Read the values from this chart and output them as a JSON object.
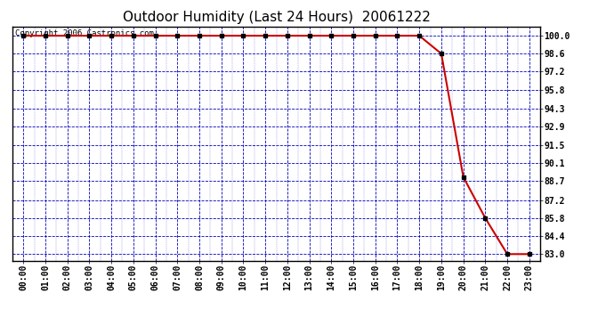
{
  "title": "Outdoor Humidity (Last 24 Hours)  20061222",
  "copyright_text": "Copyright 2006 Castronics.com",
  "background_color": "#ffffff",
  "plot_bg_color": "#ffffff",
  "grid_color": "#0000bb",
  "line_color": "#cc0000",
  "marker_color": "#000000",
  "x_labels": [
    "00:00",
    "01:00",
    "02:00",
    "03:00",
    "04:00",
    "05:00",
    "06:00",
    "07:00",
    "08:00",
    "09:00",
    "10:00",
    "11:00",
    "12:00",
    "13:00",
    "14:00",
    "15:00",
    "16:00",
    "17:00",
    "18:00",
    "19:00",
    "20:00",
    "21:00",
    "22:00",
    "23:00"
  ],
  "x_values": [
    0,
    1,
    2,
    3,
    4,
    5,
    6,
    7,
    8,
    9,
    10,
    11,
    12,
    13,
    14,
    15,
    16,
    17,
    18,
    19,
    20,
    21,
    22,
    23
  ],
  "y_values": [
    100,
    100,
    100,
    100,
    100,
    100,
    100,
    100,
    100,
    100,
    100,
    100,
    100,
    100,
    100,
    100,
    100,
    100,
    100,
    98.6,
    89.0,
    85.8,
    83.0,
    83.0
  ],
  "yticks": [
    83.0,
    84.4,
    85.8,
    87.2,
    88.7,
    90.1,
    91.5,
    92.9,
    94.3,
    95.8,
    97.2,
    98.6,
    100.0
  ],
  "ylim": [
    82.5,
    100.7
  ],
  "xlim": [
    -0.5,
    23.5
  ],
  "title_fontsize": 11,
  "tick_fontsize": 7,
  "copyright_fontsize": 6.5
}
